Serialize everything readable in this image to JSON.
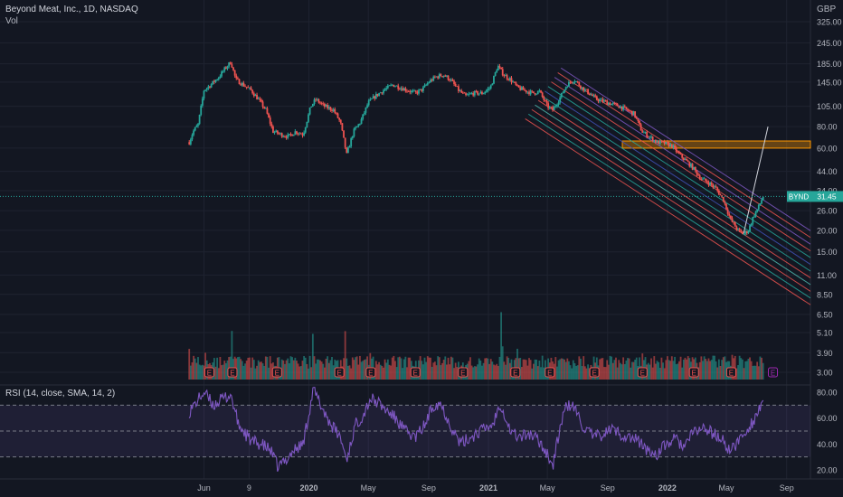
{
  "header": {
    "symbol_title": "Beyond Meat, Inc., 1D, NASDAQ",
    "volume_label": "Vol",
    "currency": "GBP",
    "rsi_label": "RSI (14, close, SMA, 14, 2)"
  },
  "price_badge": {
    "ticker": "BYND",
    "value": "31.45"
  },
  "earnings_marker": "E",
  "colors": {
    "background": "#131722",
    "up": "#26a69a",
    "down": "#ef5350",
    "rsi_line": "#7e57c2",
    "rsi_band": "#7e57c2",
    "zone": "#ff9800",
    "current_price": "#26a69a"
  },
  "chart_data": {
    "type": "candlestick",
    "y_scale": "log",
    "price_axis_ticks": [
      3.0,
      3.9,
      5.1,
      6.5,
      8.5,
      11.0,
      15.0,
      20.0,
      26.0,
      34.0,
      44.0,
      60.0,
      80.0,
      105.0,
      145.0,
      185.0,
      245.0,
      325.0
    ],
    "price_axis_labels": [
      "3.00",
      "3.90",
      "5.10",
      "6.50",
      "8.50",
      "11.00",
      "15.00",
      "20.00",
      "26.00",
      "34.00",
      "44.00",
      "60.00",
      "80.00",
      "105.00",
      "145.00",
      "185.00",
      "245.00",
      "325.00"
    ],
    "time_axis_labels": [
      "Jun",
      "9",
      "2020",
      "May",
      "Sep",
      "2021",
      "May",
      "Sep",
      "2022",
      "May",
      "Sep"
    ],
    "time_axis_dates": [
      "2019-06-01",
      "2019-09-01",
      "2020-01-01",
      "2020-05-01",
      "2020-09-01",
      "2021-01-01",
      "2021-05-01",
      "2021-09-01",
      "2022-01-01",
      "2022-05-01",
      "2022-09-01"
    ],
    "close_series": [
      [
        "2019-05-02",
        65
      ],
      [
        "2019-05-10",
        75
      ],
      [
        "2019-05-20",
        82
      ],
      [
        "2019-06-01",
        130
      ],
      [
        "2019-06-15",
        140
      ],
      [
        "2019-07-01",
        155
      ],
      [
        "2019-07-15",
        175
      ],
      [
        "2019-07-26",
        190
      ],
      [
        "2019-08-05",
        150
      ],
      [
        "2019-08-20",
        140
      ],
      [
        "2019-09-05",
        130
      ],
      [
        "2019-09-20",
        115
      ],
      [
        "2019-10-05",
        100
      ],
      [
        "2019-10-20",
        75
      ],
      [
        "2019-11-05",
        72
      ],
      [
        "2019-11-20",
        70
      ],
      [
        "2019-12-05",
        75
      ],
      [
        "2019-12-20",
        72
      ],
      [
        "2020-01-05",
        105
      ],
      [
        "2020-01-15",
        115
      ],
      [
        "2020-02-01",
        105
      ],
      [
        "2020-02-20",
        100
      ],
      [
        "2020-03-05",
        85
      ],
      [
        "2020-03-18",
        55
      ],
      [
        "2020-04-01",
        75
      ],
      [
        "2020-04-15",
        85
      ],
      [
        "2020-05-01",
        110
      ],
      [
        "2020-05-15",
        120
      ],
      [
        "2020-06-01",
        130
      ],
      [
        "2020-06-20",
        140
      ],
      [
        "2020-07-05",
        135
      ],
      [
        "2020-07-20",
        130
      ],
      [
        "2020-08-05",
        125
      ],
      [
        "2020-08-20",
        132
      ],
      [
        "2020-09-01",
        145
      ],
      [
        "2020-09-15",
        155
      ],
      [
        "2020-10-01",
        160
      ],
      [
        "2020-10-15",
        150
      ],
      [
        "2020-11-01",
        130
      ],
      [
        "2020-11-15",
        120
      ],
      [
        "2020-12-01",
        125
      ],
      [
        "2020-12-20",
        125
      ],
      [
        "2021-01-05",
        135
      ],
      [
        "2021-01-20",
        180
      ],
      [
        "2021-02-01",
        160
      ],
      [
        "2021-02-15",
        150
      ],
      [
        "2021-03-01",
        135
      ],
      [
        "2021-03-15",
        130
      ],
      [
        "2021-04-01",
        125
      ],
      [
        "2021-04-15",
        128
      ],
      [
        "2021-05-01",
        105
      ],
      [
        "2021-05-12",
        100
      ],
      [
        "2021-05-25",
        115
      ],
      [
        "2021-06-10",
        140
      ],
      [
        "2021-06-25",
        150
      ],
      [
        "2021-07-10",
        135
      ],
      [
        "2021-07-25",
        125
      ],
      [
        "2021-08-10",
        115
      ],
      [
        "2021-08-25",
        112
      ],
      [
        "2021-09-10",
        108
      ],
      [
        "2021-09-25",
        105
      ],
      [
        "2021-10-10",
        100
      ],
      [
        "2021-10-25",
        95
      ],
      [
        "2021-11-10",
        75
      ],
      [
        "2021-11-25",
        70
      ],
      [
        "2021-12-10",
        65
      ],
      [
        "2021-12-25",
        64
      ],
      [
        "2022-01-10",
        62
      ],
      [
        "2022-01-25",
        55
      ],
      [
        "2022-02-10",
        50
      ],
      [
        "2022-02-25",
        45
      ],
      [
        "2022-03-10",
        40
      ],
      [
        "2022-03-25",
        38
      ],
      [
        "2022-04-10",
        35
      ],
      [
        "2022-04-25",
        30
      ],
      [
        "2022-05-10",
        23
      ],
      [
        "2022-05-25",
        20
      ],
      [
        "2022-06-05",
        19
      ],
      [
        "2022-06-15",
        20
      ],
      [
        "2022-06-25",
        24
      ],
      [
        "2022-07-05",
        27
      ],
      [
        "2022-07-15",
        31.45
      ]
    ],
    "volume_series": [
      [
        "2019-05-02",
        6.5
      ],
      [
        "2019-06-05",
        4.8
      ],
      [
        "2019-07-29",
        6.0
      ],
      [
        "2019-08-20",
        4.4
      ],
      [
        "2019-10-25",
        4.2
      ],
      [
        "2020-01-08",
        7.0
      ],
      [
        "2020-02-10",
        5.2
      ],
      [
        "2020-03-15",
        6.0
      ],
      [
        "2020-05-06",
        5.5
      ],
      [
        "2020-06-15",
        4.6
      ],
      [
        "2020-08-05",
        4.8
      ],
      [
        "2020-10-15",
        4.4
      ],
      [
        "2021-01-27",
        7.0
      ],
      [
        "2021-03-01",
        5.0
      ],
      [
        "2021-05-06",
        4.4
      ],
      [
        "2021-08-05",
        4.2
      ],
      [
        "2021-11-11",
        4.5
      ],
      [
        "2022-02-25",
        4.6
      ],
      [
        "2022-05-12",
        4.4
      ],
      [
        "2022-07-15",
        4.2
      ]
    ],
    "earnings_dates": [
      "2019-06-12",
      "2019-07-29",
      "2019-10-28",
      "2020-03-03",
      "2020-05-06",
      "2020-08-05",
      "2020-11-10",
      "2021-02-25",
      "2021-05-06",
      "2021-08-05",
      "2021-11-11",
      "2022-02-24",
      "2022-05-11",
      "2022-08-04"
    ],
    "current_price": 31.45,
    "overlays": {
      "horizontal_zone": [
        60.0,
        66.0
      ],
      "pitchfork_channel": {
        "anchor_start": [
          "2021-05-01",
          105
        ],
        "anchor_end": [
          "2022-06-05",
          19
        ],
        "offsets_log": [
          -0.36,
          -0.27,
          -0.18,
          -0.09,
          0.0,
          0.09,
          0.18,
          0.27,
          0.36,
          0.45,
          0.54,
          0.63
        ]
      }
    },
    "rsi": {
      "label": "RSI (14, close, SMA, 14, 2)",
      "axis_ticks": [
        20,
        40,
        60,
        80
      ],
      "axis_labels": [
        "20.00",
        "40.00",
        "60.00",
        "80.00"
      ],
      "upper_band": 70,
      "lower_band": 30,
      "middle": 50,
      "series": [
        [
          "2019-05-02",
          65
        ],
        [
          "2019-06-01",
          80
        ],
        [
          "2019-06-20",
          70
        ],
        [
          "2019-07-10",
          75
        ],
        [
          "2019-07-26",
          78
        ],
        [
          "2019-08-10",
          55
        ],
        [
          "2019-09-05",
          42
        ],
        [
          "2019-09-25",
          40
        ],
        [
          "2019-10-15",
          35
        ],
        [
          "2019-10-30",
          22
        ],
        [
          "2019-11-15",
          28
        ],
        [
          "2019-12-01",
          35
        ],
        [
          "2019-12-20",
          40
        ],
        [
          "2020-01-10",
          82
        ],
        [
          "2020-01-25",
          70
        ],
        [
          "2020-02-15",
          55
        ],
        [
          "2020-03-05",
          45
        ],
        [
          "2020-03-18",
          28
        ],
        [
          "2020-04-05",
          55
        ],
        [
          "2020-04-20",
          62
        ],
        [
          "2020-05-05",
          75
        ],
        [
          "2020-05-20",
          72
        ],
        [
          "2020-06-10",
          65
        ],
        [
          "2020-06-25",
          60
        ],
        [
          "2020-07-15",
          50
        ],
        [
          "2020-08-05",
          45
        ],
        [
          "2020-08-25",
          55
        ],
        [
          "2020-09-10",
          70
        ],
        [
          "2020-09-25",
          72
        ],
        [
          "2020-10-15",
          55
        ],
        [
          "2020-11-05",
          40
        ],
        [
          "2020-11-25",
          45
        ],
        [
          "2020-12-15",
          50
        ],
        [
          "2021-01-10",
          55
        ],
        [
          "2021-01-25",
          72
        ],
        [
          "2021-02-15",
          50
        ],
        [
          "2021-03-05",
          45
        ],
        [
          "2021-03-25",
          48
        ],
        [
          "2021-04-15",
          42
        ],
        [
          "2021-05-05",
          30
        ],
        [
          "2021-05-12",
          22
        ],
        [
          "2021-05-28",
          55
        ],
        [
          "2021-06-10",
          70
        ],
        [
          "2021-06-25",
          68
        ],
        [
          "2021-07-15",
          52
        ],
        [
          "2021-08-05",
          45
        ],
        [
          "2021-08-25",
          48
        ],
        [
          "2021-09-10",
          52
        ],
        [
          "2021-09-25",
          48
        ],
        [
          "2021-10-15",
          45
        ],
        [
          "2021-11-05",
          42
        ],
        [
          "2021-11-20",
          35
        ],
        [
          "2021-12-10",
          32
        ],
        [
          "2021-12-25",
          38
        ],
        [
          "2022-01-15",
          44
        ],
        [
          "2022-02-05",
          38
        ],
        [
          "2022-02-25",
          50
        ],
        [
          "2022-03-15",
          52
        ],
        [
          "2022-04-05",
          48
        ],
        [
          "2022-04-25",
          42
        ],
        [
          "2022-05-10",
          34
        ],
        [
          "2022-05-25",
          42
        ],
        [
          "2022-06-10",
          50
        ],
        [
          "2022-06-25",
          58
        ],
        [
          "2022-07-05",
          65
        ],
        [
          "2022-07-15",
          76
        ]
      ]
    }
  }
}
